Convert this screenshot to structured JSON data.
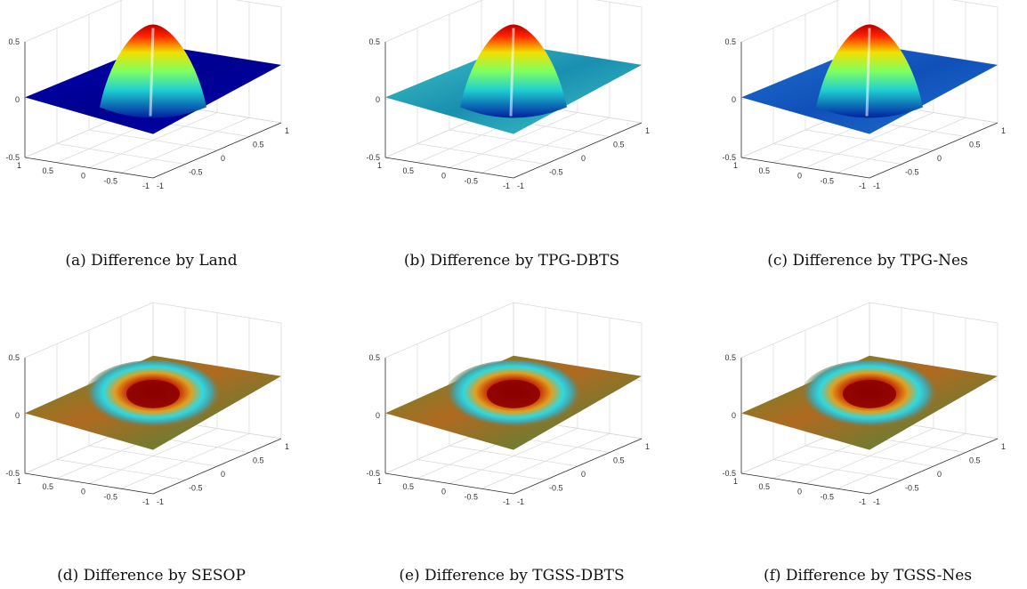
{
  "panels": [
    {
      "caption": "(a) Difference by Land",
      "scheme": "jet",
      "z_ticks": [
        "0.5",
        "0",
        "-0.5"
      ],
      "y_ticks": [
        "1",
        "0.5",
        "0",
        "-0.5",
        "-1"
      ],
      "x_ticks": [
        "-1",
        "-0.5",
        "0",
        "0.5",
        "1"
      ]
    },
    {
      "caption": "(b) Difference by TPG-DBTS",
      "scheme": "jet-cyan-base",
      "z_ticks": [
        "0.5",
        "0",
        "-0.5"
      ],
      "y_ticks": [
        "1",
        "0.5",
        "0",
        "-0.5",
        "-1"
      ],
      "x_ticks": [
        "-1",
        "-0.5",
        "0",
        "0.5",
        "1"
      ]
    },
    {
      "caption": "(c) Difference by TPG-Nes",
      "scheme": "jet-blue-base",
      "z_ticks": [
        "0.5",
        "0",
        "-0.5"
      ],
      "y_ticks": [
        "1",
        "0.5",
        "0",
        "-0.5",
        "-1"
      ],
      "x_ticks": [
        "-1",
        "-0.5",
        "0",
        "0.5",
        "1"
      ]
    },
    {
      "caption": "(d) Difference by SESOP",
      "scheme": "ring",
      "z_ticks": [
        "0.5",
        "0",
        "-0.5"
      ],
      "y_ticks": [
        "1",
        "0.5",
        "0",
        "-0.5",
        "-1"
      ],
      "x_ticks": [
        "-1",
        "-0.5",
        "0",
        "0.5",
        "1"
      ]
    },
    {
      "caption": "(e) Difference by TGSS-DBTS",
      "scheme": "ring",
      "z_ticks": [
        "0.5",
        "0",
        "-0.5"
      ],
      "y_ticks": [
        "1",
        "0.5",
        "0",
        "-0.5",
        "-1"
      ],
      "x_ticks": [
        "-1",
        "-0.5",
        "0",
        "0.5",
        "1"
      ]
    },
    {
      "caption": "(f) Difference by TGSS-Nes",
      "scheme": "ring",
      "z_ticks": [
        "0.5",
        "0",
        "-0.5"
      ],
      "y_ticks": [
        "1",
        "0.5",
        "0",
        "-0.5",
        "-1"
      ],
      "x_ticks": [
        "-1",
        "-0.5",
        "0",
        "0.5",
        "1"
      ]
    }
  ],
  "colors": {
    "jet_red": "#b40000",
    "jet_yellow": "#f0e000",
    "jet_cyan": "#20d0d0",
    "jet_blue": "#000090",
    "olive": "#7a7a20",
    "ring_red": "#8a0000",
    "ring_cyan": "#30d8e0"
  }
}
